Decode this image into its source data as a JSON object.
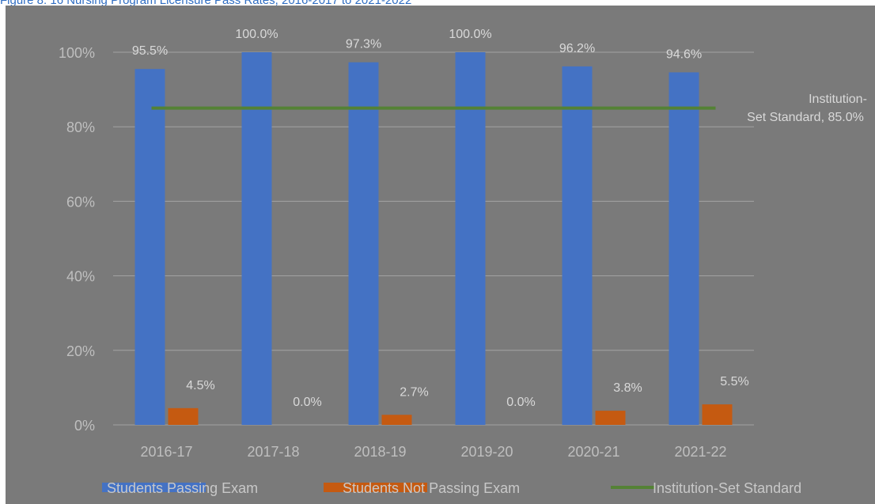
{
  "caption": "Figure 8: 16 Nursing Program Licensure Pass Rates, 2016-2017 to 2021-2022",
  "chart_data": {
    "type": "bar",
    "categories": [
      "2016-17",
      "2017-18",
      "2018-19",
      "2019-20",
      "2020-21",
      "2021-22"
    ],
    "series": [
      {
        "name": "Students Passing Exam",
        "values": [
          95.5,
          100.0,
          97.3,
          100.0,
          96.2,
          94.6
        ],
        "labels": [
          "95.5%",
          "100.0%",
          "97.3%",
          "100.0%",
          "96.2%",
          "94.6%"
        ],
        "color": "#4472c4"
      },
      {
        "name": "Students Not Passing Exam",
        "values": [
          4.5,
          0.0,
          2.7,
          0.0,
          3.8,
          5.5
        ],
        "labels": [
          "4.5%",
          "0.0%",
          "2.7%",
          "0.0%",
          "3.8%",
          "5.5%"
        ],
        "color": "#c55a11"
      }
    ],
    "reference_line": {
      "name": "Institution-Set Standard",
      "value": 85.0,
      "label_lines": [
        "Institution-",
        "Set Standard, 85.0%"
      ],
      "color": "#548235"
    },
    "yticks": [
      "0%",
      "20%",
      "40%",
      "60%",
      "80%",
      "100%"
    ],
    "ytick_values": [
      0,
      20,
      40,
      60,
      80,
      100
    ],
    "ylim": [
      0,
      100
    ],
    "grid": true,
    "legend_position": "bottom",
    "background": "#7a7a7a"
  }
}
